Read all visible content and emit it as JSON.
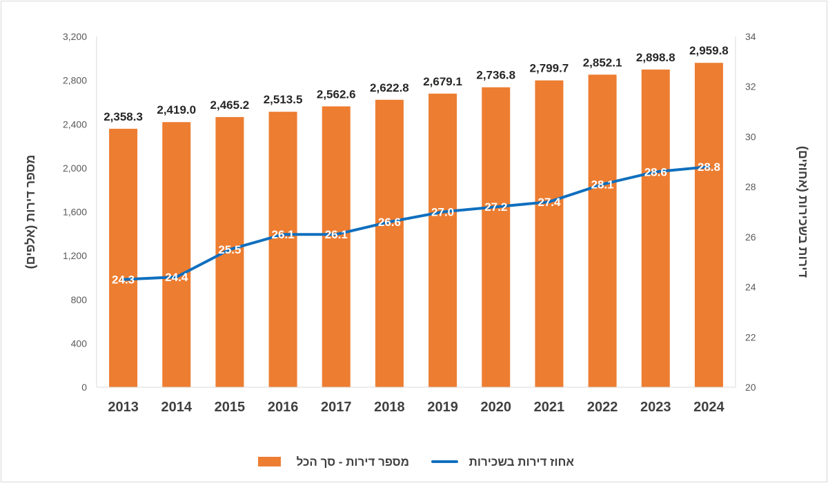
{
  "chart_data": {
    "type": "bar+line",
    "categories": [
      "2013",
      "2014",
      "2015",
      "2016",
      "2017",
      "2018",
      "2019",
      "2020",
      "2021",
      "2022",
      "2023",
      "2024"
    ],
    "series": [
      {
        "name": "מספר דירות - סך הכל",
        "type": "bar",
        "axis": "left",
        "color": "#ED7D31",
        "values": [
          2358.3,
          2419.0,
          2465.2,
          2513.5,
          2562.6,
          2622.8,
          2679.1,
          2736.8,
          2799.7,
          2852.1,
          2898.8,
          2959.8
        ],
        "labels": [
          "2,358.3",
          "2,419.0",
          "2,465.2",
          "2,513.5",
          "2,562.6",
          "2,622.8",
          "2,679.1",
          "2,736.8",
          "2,799.7",
          "2,852.1",
          "2,898.8",
          "2,959.8"
        ]
      },
      {
        "name": "אחוז דירות בשכירות",
        "type": "line",
        "axis": "right",
        "color": "#0F6FBE",
        "values": [
          24.3,
          24.4,
          25.5,
          26.1,
          26.1,
          26.6,
          27.0,
          27.2,
          27.4,
          28.1,
          28.6,
          28.8
        ],
        "labels": [
          "24.3",
          "24.4",
          "25.5",
          "26.1",
          "26.1",
          "26.6",
          "27.0",
          "27.2",
          "27.4",
          "28.1",
          "28.6",
          "28.8"
        ]
      }
    ],
    "y_left": {
      "label": "מספר דירות (אלפים)",
      "range": [
        0,
        3200
      ],
      "ticks": [
        0,
        400,
        800,
        1200,
        1600,
        2000,
        2400,
        2800,
        3200
      ],
      "tick_labels": [
        "0",
        "400",
        "800",
        "1,200",
        "1,600",
        "2,000",
        "2,400",
        "2,800",
        "3,200"
      ]
    },
    "y_right": {
      "label": "דירות בשכירות (אחוזים)",
      "range": [
        20,
        34
      ],
      "ticks": [
        20,
        22,
        24,
        26,
        28,
        30,
        32,
        34
      ],
      "tick_labels": [
        "20",
        "22",
        "24",
        "26",
        "28",
        "30",
        "32",
        "34"
      ]
    },
    "grid": false,
    "legend": {
      "position": "bottom",
      "entries": [
        {
          "label": "אחוז דירות בשכירות",
          "marker": "line",
          "color": "#0F6FBE"
        },
        {
          "label": "מספר דירות - סך הכל",
          "marker": "box",
          "color": "#ED7D31"
        }
      ]
    }
  }
}
